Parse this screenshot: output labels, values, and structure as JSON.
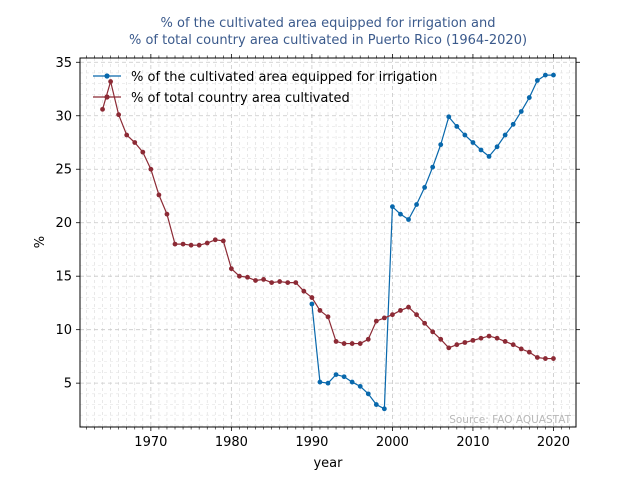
{
  "chart_data": {
    "type": "line",
    "title_line1": "% of the cultivated area equipped for irrigation and",
    "title_line2": "% of total country area cultivated in Puerto Rico (1964-2020)",
    "xlabel": "year",
    "ylabel": "%",
    "xlim": [
      1961.2,
      2022.8
    ],
    "ylim": [
      0.9,
      35.4
    ],
    "x_ticks": [
      1970,
      1980,
      1990,
      2000,
      2010,
      2020
    ],
    "y_ticks": [
      5,
      10,
      15,
      20,
      25,
      30,
      35
    ],
    "grid": true,
    "legend_position": "top-left",
    "source": "Source: FAO AQUASTAT",
    "series": [
      {
        "name": "% of the cultivated area equipped for irrigation",
        "color": "#0868ac",
        "x": [
          1990,
          1991,
          1992,
          1993,
          1994,
          1995,
          1996,
          1997,
          1998,
          1999,
          2000,
          2001,
          2002,
          2003,
          2004,
          2005,
          2006,
          2007,
          2008,
          2009,
          2010,
          2011,
          2012,
          2013,
          2014,
          2015,
          2016,
          2017,
          2018,
          2019,
          2020
        ],
        "y": [
          12.4,
          5.1,
          5.0,
          5.8,
          5.6,
          5.1,
          4.7,
          4.0,
          3.0,
          2.6,
          21.5,
          20.8,
          20.3,
          21.7,
          23.3,
          25.2,
          27.3,
          29.9,
          29.0,
          28.2,
          27.5,
          26.8,
          26.2,
          27.1,
          28.2,
          29.2,
          30.4,
          31.7,
          33.3,
          33.8,
          33.8
        ]
      },
      {
        "name": "% of total country area cultivated",
        "color": "#8c2a35",
        "x": [
          1964,
          1965,
          1966,
          1967,
          1968,
          1969,
          1970,
          1971,
          1972,
          1973,
          1974,
          1975,
          1976,
          1977,
          1978,
          1979,
          1980,
          1981,
          1982,
          1983,
          1984,
          1985,
          1986,
          1987,
          1988,
          1989,
          1990,
          1991,
          1992,
          1993,
          1994,
          1995,
          1996,
          1997,
          1998,
          1999,
          2000,
          2001,
          2002,
          2003,
          2004,
          2005,
          2006,
          2007,
          2008,
          2009,
          2010,
          2011,
          2012,
          2013,
          2014,
          2015,
          2016,
          2017,
          2018,
          2019,
          2020
        ],
        "y": [
          30.6,
          33.2,
          30.1,
          28.2,
          27.5,
          26.6,
          25.0,
          22.6,
          20.8,
          18.0,
          18.0,
          17.9,
          17.9,
          18.1,
          18.4,
          18.3,
          15.7,
          15.0,
          14.9,
          14.6,
          14.7,
          14.4,
          14.5,
          14.4,
          14.4,
          13.6,
          13.0,
          11.8,
          11.2,
          8.9,
          8.7,
          8.7,
          8.7,
          9.1,
          10.8,
          11.1,
          11.4,
          11.8,
          12.1,
          11.4,
          10.6,
          9.8,
          9.1,
          8.3,
          8.6,
          8.8,
          9.0,
          9.2,
          9.4,
          9.2,
          8.9,
          8.6,
          8.2,
          7.9,
          7.4,
          7.3,
          7.3
        ]
      }
    ]
  }
}
